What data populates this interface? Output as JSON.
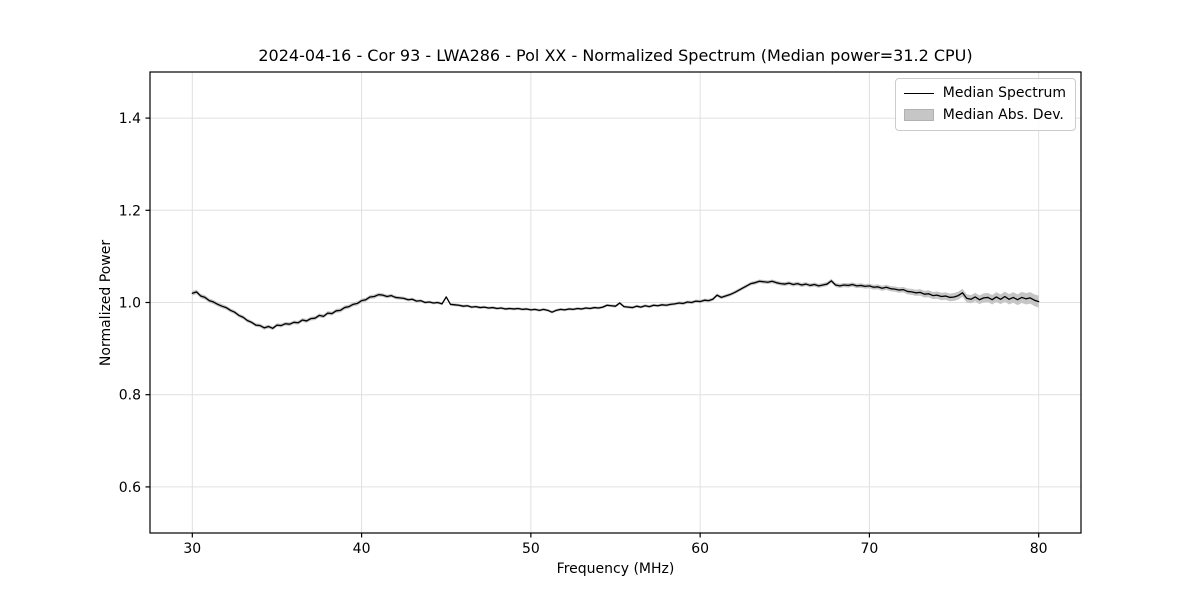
{
  "chart_data": {
    "type": "line",
    "title": "2024-04-16 - Cor 93 - LWA286 - Pol XX - Normalized Spectrum (Median power=31.2 CPU)",
    "xlabel": "Frequency (MHz)",
    "ylabel": "Normalized Power",
    "xlim": [
      27.5,
      82.5
    ],
    "ylim": [
      0.5,
      1.5
    ],
    "xticks": [
      30,
      40,
      50,
      60,
      70,
      80
    ],
    "xtick_labels": [
      "30",
      "40",
      "50",
      "60",
      "70",
      "80"
    ],
    "yticks": [
      0.6,
      0.8,
      1.0,
      1.2,
      1.4
    ],
    "ytick_labels": [
      "0.6",
      "0.8",
      "1.0",
      "1.2",
      "1.4"
    ],
    "grid": true,
    "colors": {
      "line": "#000000",
      "band": "#c6c6c6",
      "grid": "#e0e0e0",
      "spine": "#000000",
      "text": "#000000"
    },
    "legend": {
      "position": "upper right",
      "entries": [
        {
          "label": "Median Spectrum",
          "type": "line"
        },
        {
          "label": "Median Abs. Dev.",
          "type": "band"
        }
      ]
    },
    "series": [
      {
        "name": "Median Spectrum",
        "type": "line",
        "x_start": 30.0,
        "x_step": 0.25,
        "y": [
          1.02,
          1.023,
          1.014,
          1.011,
          1.004,
          1.001,
          0.996,
          0.992,
          0.989,
          0.983,
          0.979,
          0.972,
          0.968,
          0.961,
          0.957,
          0.951,
          0.95,
          0.945,
          0.948,
          0.944,
          0.951,
          0.95,
          0.954,
          0.953,
          0.957,
          0.956,
          0.962,
          0.96,
          0.965,
          0.966,
          0.972,
          0.97,
          0.977,
          0.976,
          0.982,
          0.983,
          0.989,
          0.991,
          0.996,
          0.998,
          1.004,
          1.006,
          1.012,
          1.013,
          1.017,
          1.016,
          1.013,
          1.015,
          1.011,
          1.01,
          1.009,
          1.006,
          1.007,
          1.003,
          1.004,
          1.0,
          1.001,
          0.999,
          1.0,
          0.997,
          1.012,
          0.996,
          0.995,
          0.994,
          0.992,
          0.993,
          0.99,
          0.991,
          0.989,
          0.99,
          0.988,
          0.989,
          0.987,
          0.988,
          0.986,
          0.987,
          0.986,
          0.987,
          0.985,
          0.986,
          0.984,
          0.985,
          0.983,
          0.985,
          0.983,
          0.979,
          0.983,
          0.985,
          0.984,
          0.986,
          0.985,
          0.987,
          0.986,
          0.988,
          0.987,
          0.989,
          0.988,
          0.99,
          0.994,
          0.993,
          0.992,
          0.999,
          0.991,
          0.99,
          0.989,
          0.992,
          0.99,
          0.993,
          0.991,
          0.994,
          0.993,
          0.995,
          0.994,
          0.996,
          0.997,
          0.999,
          0.998,
          1.001,
          1.0,
          1.003,
          1.002,
          1.005,
          1.004,
          1.007,
          1.016,
          1.011,
          1.014,
          1.017,
          1.021,
          1.026,
          1.031,
          1.036,
          1.041,
          1.043,
          1.046,
          1.045,
          1.044,
          1.046,
          1.043,
          1.041,
          1.04,
          1.042,
          1.039,
          1.041,
          1.038,
          1.04,
          1.037,
          1.039,
          1.036,
          1.038,
          1.04,
          1.047,
          1.038,
          1.036,
          1.038,
          1.037,
          1.039,
          1.036,
          1.037,
          1.035,
          1.036,
          1.033,
          1.034,
          1.031,
          1.033,
          1.03,
          1.029,
          1.027,
          1.028,
          1.024,
          1.023,
          1.021,
          1.022,
          1.018,
          1.019,
          1.015,
          1.016,
          1.013,
          1.014,
          1.011,
          1.012,
          1.015,
          1.021,
          1.009,
          1.007,
          1.012,
          1.006,
          1.01,
          1.011,
          1.006,
          1.012,
          1.007,
          1.013,
          1.007,
          1.011,
          1.006,
          1.011,
          1.008,
          1.01,
          1.005,
          1.002
        ]
      },
      {
        "name": "Median Abs. Dev.",
        "type": "band",
        "anchor_x": [
          30,
          33,
          36,
          40,
          44,
          48,
          52,
          56,
          60,
          64,
          68,
          70,
          72,
          74,
          76,
          78,
          80
        ],
        "halfwidth": [
          0.005,
          0.004,
          0.004,
          0.0045,
          0.003,
          0.003,
          0.003,
          0.003,
          0.0035,
          0.004,
          0.0045,
          0.005,
          0.006,
          0.008,
          0.009,
          0.011,
          0.013
        ]
      }
    ]
  }
}
